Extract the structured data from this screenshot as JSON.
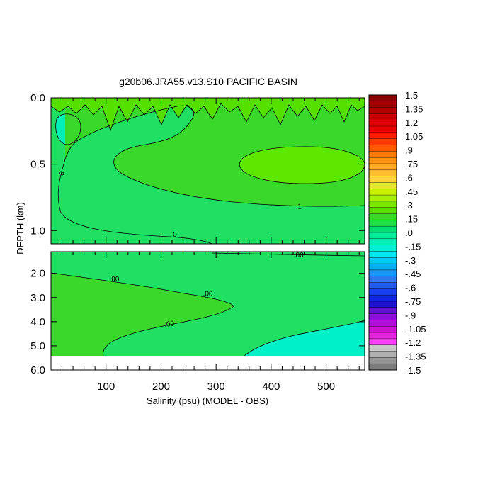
{
  "chart_data": {
    "type": "contour",
    "title": "g20b06.JRA55.v13.S10 PACIFIC BASIN",
    "xlabel": "Salinity (psu) (MODEL - OBS)",
    "ylabel": "DEPTH (km)",
    "xlim": [
      0,
      570
    ],
    "x_ticks": [
      "100",
      "200",
      "300",
      "400",
      "500"
    ],
    "x_tick_values": [
      100,
      200,
      300,
      400,
      500
    ],
    "upper_panel": {
      "ylim": [
        0.0,
        1.1
      ],
      "y_ticks": [
        "0.0",
        "0.5",
        "1.0"
      ],
      "y_tick_values": [
        0.0,
        0.5,
        1.0
      ]
    },
    "lower_panel": {
      "ylim": [
        1.1,
        6.0
      ],
      "y_ticks": [
        "2.0",
        "3.0",
        "4.0",
        "5.0",
        "6.0"
      ],
      "y_tick_values": [
        2.0,
        3.0,
        4.0,
        5.0,
        6.0
      ]
    },
    "contour_labels": [
      {
        "text": "0",
        "x": 20,
        "y": 0.57,
        "panel": "upper",
        "rot": -60
      },
      {
        "text": ".1",
        "x": 450,
        "y": 0.82,
        "panel": "upper",
        "rot": 0
      },
      {
        "text": "0",
        "x": 225,
        "y": 1.03,
        "panel": "upper",
        "rot": 0
      },
      {
        "text": ".00",
        "x": 450,
        "y": 1.25,
        "panel": "lower",
        "rot": 0
      },
      {
        "text": ".00",
        "x": 115,
        "y": 2.25,
        "panel": "lower",
        "rot": 0
      },
      {
        "text": ".00",
        "x": 285,
        "y": 2.85,
        "panel": "lower",
        "rot": 0
      },
      {
        "text": ".00",
        "x": 215,
        "y": 4.1,
        "panel": "lower",
        "rot": -10
      }
    ],
    "colorbar": {
      "labels": [
        "1.5",
        "1.35",
        "1.2",
        "1.05",
        ".9",
        ".75",
        ".6",
        ".45",
        ".3",
        ".15",
        ".0",
        "-.15",
        "-.3",
        "-.45",
        "-.6",
        "-.75",
        "-.9",
        "-1.05",
        "-1.2",
        "-1.35",
        "-1.5"
      ],
      "colors": [
        "#8b0000",
        "#a00000",
        "#b40000",
        "#c80000",
        "#dc0000",
        "#f00000",
        "#ff1a00",
        "#ff3a00",
        "#ff5a00",
        "#ff7a00",
        "#ff9210",
        "#ffaa20",
        "#ffbe30",
        "#ffd23a",
        "#e6e630",
        "#c8f000",
        "#a8f000",
        "#7ce800",
        "#55e000",
        "#3ad82a",
        "#1fe040",
        "#00e070",
        "#00ee9a",
        "#00f0b8",
        "#00f0d6",
        "#00e8f0",
        "#00ccf2",
        "#00b0f4",
        "#1c96f4",
        "#3078f0",
        "#245af0",
        "#1840f0",
        "#1024e6",
        "#2010d0",
        "#6010d0",
        "#8c10d8",
        "#b010d8",
        "#d010d8",
        "#e820e0",
        "#ff40ff",
        "#c8c8c8",
        "#b0b0b0",
        "#969696",
        "#7c7c7c"
      ]
    }
  }
}
